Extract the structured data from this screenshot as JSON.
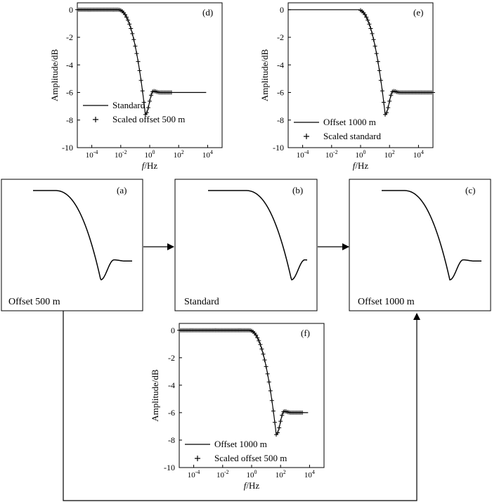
{
  "chart_data": [
    {
      "id": "d",
      "type": "line",
      "panel_label": "(d)",
      "ylabel": "Amplitude/dB",
      "xlabel_italic": "f",
      "xlabel_unit": "/Hz",
      "ylim": [
        -10,
        0.5
      ],
      "xlim_log10": [
        -5,
        5
      ],
      "yticks": [
        0,
        -2,
        -4,
        -6,
        -8,
        -10
      ],
      "xticks": [
        -4,
        -2,
        0,
        2,
        4
      ],
      "legend_location": "bottom-left",
      "series": [
        {
          "name": "Standard",
          "style": "solid",
          "log_shift": 0
        },
        {
          "name": "Scaled offset 500 m",
          "style": "plus",
          "log_shift": 0,
          "marker_log_range": [
            -5,
            1.5
          ]
        }
      ]
    },
    {
      "id": "e",
      "type": "line",
      "panel_label": "(e)",
      "ylabel": "Amplitude/dB",
      "xlabel_italic": "f",
      "xlabel_unit": "/Hz",
      "ylim": [
        -10,
        0.5
      ],
      "xlim_log10": [
        -5,
        5
      ],
      "yticks": [
        0,
        -2,
        -4,
        -6,
        -8,
        -10
      ],
      "xticks": [
        -4,
        -2,
        0,
        2,
        4
      ],
      "legend_location": "bottom-left",
      "series": [
        {
          "name": "Offset 1000 m",
          "style": "solid",
          "log_shift": 2
        },
        {
          "name": "Scaled standard",
          "style": "plus",
          "log_shift": 2,
          "marker_log_range": [
            0,
            5
          ]
        }
      ]
    },
    {
      "id": "f",
      "type": "line",
      "panel_label": "(f)",
      "ylabel": "Amplitude/dB",
      "xlabel_italic": "f",
      "xlabel_unit": "/Hz",
      "ylim": [
        -10,
        0.5
      ],
      "xlim_log10": [
        -5,
        5
      ],
      "yticks": [
        0,
        -2,
        -4,
        -6,
        -8,
        -10
      ],
      "xticks": [
        -4,
        -2,
        0,
        2,
        4
      ],
      "legend_location": "bottom-left",
      "series": [
        {
          "name": "Offset 1000 m",
          "style": "solid",
          "log_shift": 2
        },
        {
          "name": "Scaled offset 500 m",
          "style": "plus",
          "log_shift": 2,
          "marker_log_range": [
            -5,
            3.5
          ]
        }
      ]
    }
  ],
  "response_shape": {
    "flat_level_db": 0,
    "dip_min_db": -7.6,
    "overshoot_db": -5.9,
    "tail_level_db": -6,
    "dip_center_log_hz": -0.3
  },
  "schematic_boxes": [
    {
      "id": "a",
      "panel_label": "(a)",
      "caption": "Offset 500 m"
    },
    {
      "id": "b",
      "panel_label": "(b)",
      "caption": "Standard"
    },
    {
      "id": "c",
      "panel_label": "(c)",
      "caption": "Offset 1000 m"
    }
  ],
  "colors": {
    "stroke": "#000000",
    "background": "#ffffff"
  }
}
